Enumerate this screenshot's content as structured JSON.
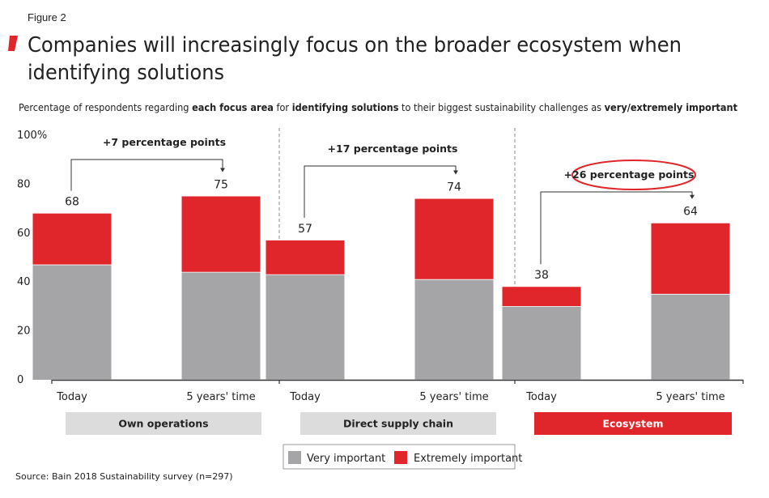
{
  "figure_label": "Figure 2",
  "title_line1": "Companies will increasingly focus on the broader ecosystem when",
  "title_line2": "identifying solutions",
  "subtitle": {
    "p1": "Percentage of respondents regarding ",
    "b1": "each focus area",
    "p2": " for ",
    "b2": "identifying solutions",
    "p3": " to their biggest sustainability challenges as ",
    "b3": "very/extremely important"
  },
  "source": "Source: Bain 2018 Sustainability survey (n=297)",
  "colors": {
    "very": "#a5a5a8",
    "extremely": "#e1262b",
    "group_bg": "#dcdcdc",
    "axis": "#333333"
  },
  "chart_data": {
    "type": "bar",
    "stacked": true,
    "ylim": [
      0,
      100
    ],
    "yticks": [
      "100%",
      "80",
      "60",
      "40",
      "20",
      "0"
    ],
    "yticks_values": [
      100,
      80,
      60,
      40,
      20,
      0
    ],
    "groups": [
      {
        "name": "Own operations",
        "highlight": false,
        "annotation": "+7 percentage points",
        "bars": [
          {
            "category": "Today",
            "very": 47,
            "extremely": 21,
            "total": "68"
          },
          {
            "category": "5 years' time",
            "very": 44,
            "extremely": 31,
            "total": "75"
          }
        ]
      },
      {
        "name": "Direct supply chain",
        "highlight": false,
        "annotation": "+17 percentage points",
        "bars": [
          {
            "category": "Today",
            "very": 43,
            "extremely": 14,
            "total": "57"
          },
          {
            "category": "5 years' time",
            "very": 41,
            "extremely": 33,
            "total": "74"
          }
        ]
      },
      {
        "name": "Ecosystem",
        "highlight": true,
        "annotation": "+26 percentage points",
        "bars": [
          {
            "category": "Today",
            "very": 30,
            "extremely": 8,
            "total": "38"
          },
          {
            "category": "5 years' time",
            "very": 35,
            "extremely": 29,
            "total": "64"
          }
        ]
      }
    ],
    "legend": [
      "Very important",
      "Extremely important"
    ],
    "legend_placement": "bottom-center"
  }
}
